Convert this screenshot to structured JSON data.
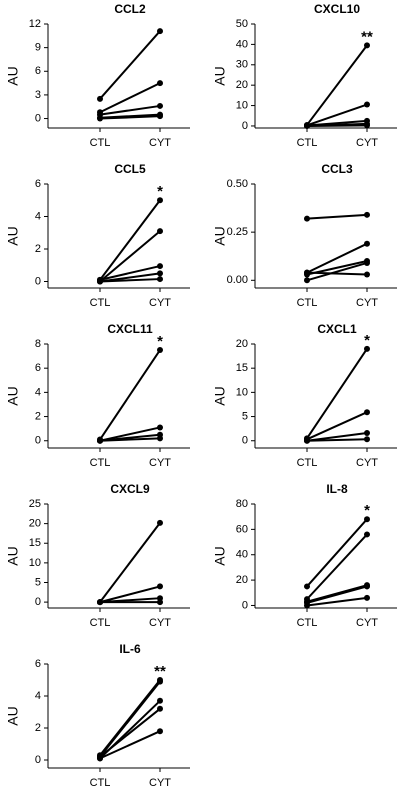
{
  "chart_data": [
    {
      "type": "line",
      "title": "CCL2",
      "ylabel": "AU",
      "categories": [
        "CTL",
        "CYT"
      ],
      "ylim": [
        -1.2,
        12
      ],
      "yticks": [
        0,
        3,
        6,
        9,
        12
      ],
      "color": "#000000",
      "series": [
        {
          "values": [
            2.5,
            11.1
          ]
        },
        {
          "values": [
            0.8,
            4.5
          ]
        },
        {
          "values": [
            0.5,
            1.6
          ]
        },
        {
          "values": [
            0.1,
            0.5
          ]
        },
        {
          "values": [
            0,
            0.3
          ]
        }
      ]
    },
    {
      "type": "line",
      "title": "CXCL10",
      "ylabel": "AU",
      "categories": [
        "CTL",
        "CYT"
      ],
      "ylim": [
        -1,
        50
      ],
      "yticks": [
        0,
        10,
        20,
        30,
        40,
        50
      ],
      "color": "#000000",
      "annotation": "**",
      "series": [
        {
          "values": [
            0.5,
            39.5
          ]
        },
        {
          "values": [
            0.3,
            10.5
          ]
        },
        {
          "values": [
            0.2,
            2.5
          ]
        },
        {
          "values": [
            0.1,
            1
          ]
        },
        {
          "values": [
            0,
            0.3
          ]
        }
      ]
    },
    {
      "type": "line",
      "title": "CCL5",
      "ylabel": "AU",
      "categories": [
        "CTL",
        "CYT"
      ],
      "ylim": [
        -0.4,
        6
      ],
      "yticks": [
        0,
        2,
        4,
        6
      ],
      "color": "#000000",
      "annotation": "*",
      "series": [
        {
          "values": [
            0.1,
            5.0
          ]
        },
        {
          "values": [
            0,
            3.1
          ]
        },
        {
          "values": [
            0.1,
            0.95
          ]
        },
        {
          "values": [
            0,
            0.5
          ]
        },
        {
          "values": [
            0,
            0.15
          ]
        }
      ]
    },
    {
      "type": "line",
      "title": "CCL3",
      "ylabel": "AU",
      "categories": [
        "CTL",
        "CYT"
      ],
      "ylim": [
        -0.04,
        0.5
      ],
      "yticks": [
        {
          "value": 0,
          "label": "0.00"
        },
        {
          "value": 0.25,
          "label": "0.25"
        },
        {
          "value": 0.5,
          "label": "0.50"
        }
      ],
      "color": "#000000",
      "series": [
        {
          "values": [
            0.32,
            0.34
          ]
        },
        {
          "values": [
            0.04,
            0.19
          ]
        },
        {
          "values": [
            0.03,
            0.1
          ]
        },
        {
          "values": [
            0,
            0.09
          ]
        },
        {
          "values": [
            0.04,
            0.03
          ]
        }
      ]
    },
    {
      "type": "line",
      "title": "CXCL11",
      "ylabel": "AU",
      "categories": [
        "CTL",
        "CYT"
      ],
      "ylim": [
        -0.6,
        8
      ],
      "yticks": [
        0,
        2,
        4,
        6,
        8
      ],
      "color": "#000000",
      "annotation": "*",
      "series": [
        {
          "values": [
            0.1,
            7.5
          ]
        },
        {
          "values": [
            0,
            1.1
          ]
        },
        {
          "values": [
            0,
            0.5
          ]
        },
        {
          "values": [
            0,
            0.2
          ]
        }
      ]
    },
    {
      "type": "line",
      "title": "CXCL1",
      "ylabel": "AU",
      "categories": [
        "CTL",
        "CYT"
      ],
      "ylim": [
        -1.5,
        20
      ],
      "yticks": [
        0,
        5,
        10,
        15,
        20
      ],
      "color": "#000000",
      "annotation": "*",
      "series": [
        {
          "values": [
            0.5,
            19
          ]
        },
        {
          "values": [
            0.3,
            5.9
          ]
        },
        {
          "values": [
            0,
            1.6
          ]
        },
        {
          "values": [
            0,
            0.3
          ]
        }
      ]
    },
    {
      "type": "line",
      "title": "CXCL9",
      "ylabel": "AU",
      "categories": [
        "CTL",
        "CYT"
      ],
      "ylim": [
        -1.5,
        25
      ],
      "yticks": [
        0,
        5,
        10,
        15,
        20,
        25
      ],
      "color": "#000000",
      "series": [
        {
          "values": [
            0,
            20.2
          ]
        },
        {
          "values": [
            0,
            4
          ]
        },
        {
          "values": [
            0,
            1
          ]
        },
        {
          "values": [
            0,
            0
          ]
        }
      ]
    },
    {
      "type": "line",
      "title": "IL-8",
      "ylabel": "AU",
      "categories": [
        "CTL",
        "CYT"
      ],
      "ylim": [
        -2,
        80
      ],
      "yticks": [
        0,
        20,
        40,
        60,
        80
      ],
      "color": "#000000",
      "annotation": "*",
      "series": [
        {
          "values": [
            15,
            68
          ]
        },
        {
          "values": [
            5,
            56
          ]
        },
        {
          "values": [
            3,
            16
          ]
        },
        {
          "values": [
            2,
            15
          ]
        },
        {
          "values": [
            0,
            6
          ]
        }
      ]
    },
    {
      "type": "line",
      "title": "IL-6",
      "ylabel": "AU",
      "categories": [
        "CTL",
        "CYT"
      ],
      "ylim": [
        -0.5,
        6
      ],
      "yticks": [
        0,
        2,
        4,
        6
      ],
      "color": "#000000",
      "annotation": "**",
      "series": [
        {
          "values": [
            0.3,
            5.0
          ]
        },
        {
          "values": [
            0.2,
            4.9
          ]
        },
        {
          "values": [
            0.1,
            3.7
          ]
        },
        {
          "values": [
            0.2,
            3.2
          ]
        },
        {
          "values": [
            0.1,
            1.8
          ]
        }
      ]
    }
  ]
}
